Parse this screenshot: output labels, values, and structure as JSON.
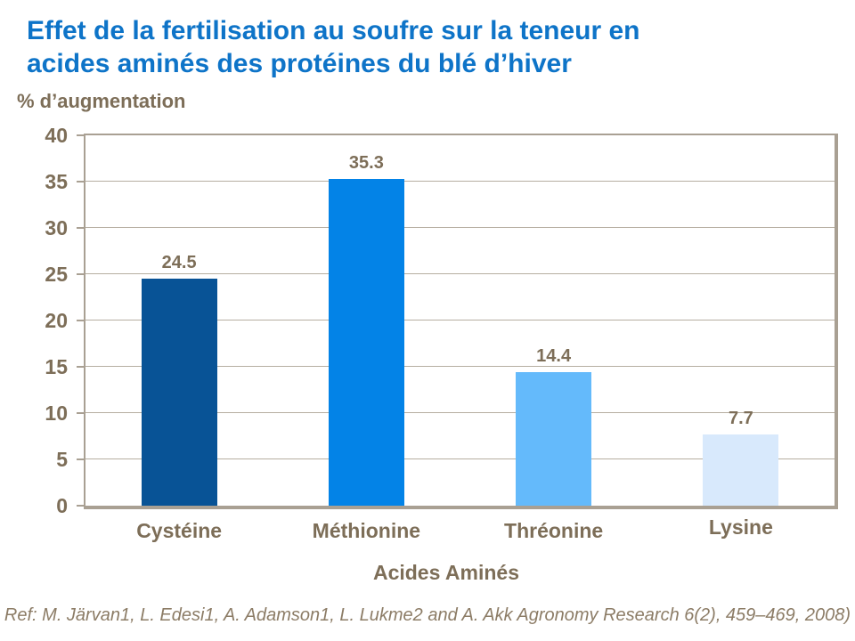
{
  "slide": {
    "title_line1": "Effet de la fertilisation au soufre sur la teneur en",
    "title_line2": "acides aminés des protéines du blé d’hiver",
    "footer": "Ref: M. Järvan1, L. Edesi1, A. Adamson1, L. Lukme2 and A. Akk Agronomy Research 6(2), 459–469, 2008)"
  },
  "colors": {
    "title_blue": "#0e74c8",
    "label_brown": "#7d6e58",
    "footer_brown": "#8c7c66",
    "axis_border_tan": "#a9a093",
    "gridline_tan": "#b6aea1",
    "bar_colors": [
      "#085396",
      "#0383e7",
      "#64bafb",
      "#d8e9fc"
    ]
  },
  "chart_data": {
    "type": "bar",
    "title": "Effet de la fertilisation au soufre sur la teneur en acides aminés des protéines du blé d’hiver",
    "categories": [
      "Cystéine",
      "Méthionine",
      "Thréonine",
      "Lysine"
    ],
    "values": [
      24.5,
      35.3,
      14.4,
      7.7
    ],
    "value_labels": [
      "24.5",
      "35.3",
      "14.4",
      "7.7"
    ],
    "xlabel": "Acides Aminés",
    "ylabel": "% d’augmentation",
    "ylim": [
      0,
      40
    ],
    "yticks": [
      0,
      5,
      10,
      15,
      20,
      25,
      30,
      35,
      40
    ],
    "grid": true,
    "legend": false
  }
}
